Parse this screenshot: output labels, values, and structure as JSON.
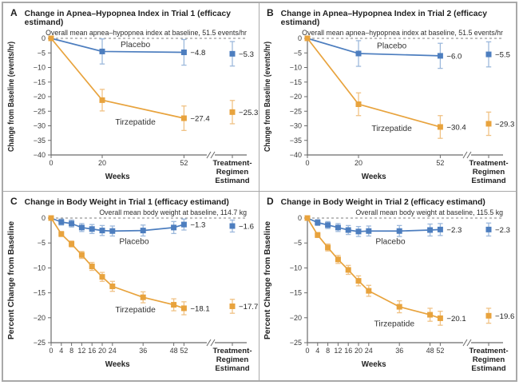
{
  "chart_data": [
    {
      "type": "line",
      "letter": "A",
      "title": "Change in Apnea–Hypopnea Index in Trial 1 (efficacy estimand)",
      "baseline_note": "Overall mean apnea–hypopnea index at baseline, 51.5 events/hr",
      "ylabel": "Change from Baseline (events/hr)",
      "xlabel": "Weeks",
      "estimand_axis_label": [
        "Treatment-",
        "Regimen",
        "Estimand"
      ],
      "ylim": [
        0,
        -40
      ],
      "yticks": [
        0,
        -5,
        -10,
        -15,
        -20,
        -25,
        -30,
        -35,
        -40
      ],
      "xticks": [
        0,
        20,
        52
      ],
      "series": [
        {
          "name": "Placebo",
          "color": "#4d7ebf",
          "err_color": "#9db9dc",
          "x": [
            0,
            20,
            52
          ],
          "y": [
            0,
            -4.5,
            -4.8
          ],
          "err": [
            0,
            4.3,
            4.4
          ],
          "end_label": "−4.8",
          "estimand": {
            "value": -5.3,
            "err": 4.2,
            "label": "−5.3"
          },
          "name_pos": {
            "week": 33,
            "value": -3.0
          }
        },
        {
          "name": "Tirzepatide",
          "color": "#e8a33d",
          "err_color": "#f0c285",
          "x": [
            0,
            20,
            52
          ],
          "y": [
            0,
            -21.2,
            -27.4
          ],
          "err": [
            0,
            3.7,
            4.2
          ],
          "end_label": "−27.4",
          "estimand": {
            "value": -25.3,
            "err": 4.0,
            "label": "−25.3"
          },
          "name_pos": {
            "week": 33,
            "value": -29.6
          }
        }
      ]
    },
    {
      "type": "line",
      "letter": "B",
      "title": "Change in Apnea–Hypopnea Index in Trial 2 (efficacy estimand)",
      "baseline_note": "Overall mean apnea–hypopnea index at baseline, 51.5 events/hr",
      "ylabel": "Change from Baseline (events/hr)",
      "xlabel": "Weeks",
      "estimand_axis_label": [
        "Treatment-",
        "Regimen",
        "Estimand"
      ],
      "ylim": [
        0,
        -40
      ],
      "yticks": [
        0,
        -5,
        -10,
        -15,
        -20,
        -25,
        -30,
        -35,
        -40
      ],
      "xticks": [
        0,
        20,
        52
      ],
      "series": [
        {
          "name": "Placebo",
          "color": "#4d7ebf",
          "err_color": "#9db9dc",
          "x": [
            0,
            20,
            52
          ],
          "y": [
            0,
            -5.2,
            -6.0
          ],
          "err": [
            0,
            4.4,
            4.3
          ],
          "end_label": "−6.0",
          "estimand": {
            "value": -5.5,
            "err": 4.3,
            "label": "−5.5"
          },
          "name_pos": {
            "week": 33,
            "value": -3.4
          }
        },
        {
          "name": "Tirzepatide",
          "color": "#e8a33d",
          "err_color": "#f0c285",
          "x": [
            0,
            20,
            52
          ],
          "y": [
            0,
            -22.6,
            -30.4
          ],
          "err": [
            0,
            3.9,
            3.9
          ],
          "end_label": "−30.4",
          "estimand": {
            "value": -29.3,
            "err": 4.0,
            "label": "−29.3"
          },
          "name_pos": {
            "week": 33,
            "value": -31.8
          }
        }
      ]
    },
    {
      "type": "line",
      "letter": "C",
      "title": "Change in Body Weight in Trial 1 (efficacy estimand)",
      "baseline_note": "Overall mean body weight at baseline, 114.7 kg",
      "ylabel": "Percent Change from Baseline",
      "xlabel": "Weeks",
      "estimand_axis_label": [
        "Treatment-",
        "Regimen",
        "Estimand"
      ],
      "ylim": [
        0,
        -25
      ],
      "yticks": [
        0,
        -5,
        -10,
        -15,
        -20,
        -25
      ],
      "xticks": [
        0,
        4,
        8,
        12,
        16,
        20,
        24,
        36,
        48,
        52
      ],
      "series": [
        {
          "name": "Placebo",
          "color": "#4d7ebf",
          "err_color": "#9db9dc",
          "x": [
            0,
            4,
            8,
            12,
            16,
            20,
            24,
            36,
            48,
            52
          ],
          "y": [
            0,
            -0.8,
            -1.1,
            -1.9,
            -2.2,
            -2.5,
            -2.6,
            -2.5,
            -1.9,
            -1.3
          ],
          "err": [
            0,
            0.6,
            0.7,
            0.8,
            0.9,
            1.0,
            1.0,
            1.1,
            1.2,
            1.1
          ],
          "end_label": "−1.3",
          "estimand": {
            "value": -1.6,
            "err": 1.2,
            "label": "−1.6"
          },
          "name_pos": {
            "week": 32.5,
            "value": -5.2
          }
        },
        {
          "name": "Tirzepatide",
          "color": "#e8a33d",
          "err_color": "#f0c285",
          "x": [
            0,
            4,
            8,
            12,
            16,
            20,
            24,
            36,
            48,
            52
          ],
          "y": [
            0,
            -3.2,
            -5.2,
            -7.4,
            -9.7,
            -11.8,
            -13.7,
            -15.9,
            -17.4,
            -18.1
          ],
          "err": [
            0,
            0.5,
            0.6,
            0.7,
            0.8,
            0.9,
            1.0,
            1.1,
            1.2,
            1.3
          ],
          "end_label": "−18.1",
          "estimand": {
            "value": -17.7,
            "err": 1.4,
            "label": "−17.7"
          },
          "name_pos": {
            "week": 33,
            "value": -18.9
          }
        }
      ]
    },
    {
      "type": "line",
      "letter": "D",
      "title": "Change in Body Weight in Trial 2 (efficacy estimand)",
      "baseline_note": "Overall mean body weight at baseline, 115.5 kg",
      "ylabel": "Percent Change from Baseline",
      "xlabel": "Weeks",
      "estimand_axis_label": [
        "Treatment-",
        "Regimen",
        "Estimand"
      ],
      "ylim": [
        0,
        -25
      ],
      "yticks": [
        0,
        -5,
        -10,
        -15,
        -20,
        -25
      ],
      "xticks": [
        0,
        4,
        8,
        12,
        16,
        20,
        24,
        36,
        48,
        52
      ],
      "series": [
        {
          "name": "Placebo",
          "color": "#4d7ebf",
          "err_color": "#9db9dc",
          "x": [
            0,
            4,
            8,
            12,
            16,
            20,
            24,
            36,
            48,
            52
          ],
          "y": [
            0,
            -0.9,
            -1.4,
            -1.9,
            -2.4,
            -2.7,
            -2.6,
            -2.6,
            -2.4,
            -2.3
          ],
          "err": [
            0,
            0.6,
            0.7,
            0.8,
            0.9,
            1.0,
            1.0,
            1.1,
            1.2,
            1.2
          ],
          "end_label": "−2.3",
          "estimand": {
            "value": -2.3,
            "err": 1.3,
            "label": "−2.3"
          },
          "name_pos": {
            "week": 32.5,
            "value": -5.2
          }
        },
        {
          "name": "Tirzepatide",
          "color": "#e8a33d",
          "err_color": "#f0c285",
          "x": [
            0,
            4,
            8,
            12,
            16,
            20,
            24,
            36,
            48,
            52
          ],
          "y": [
            0,
            -3.4,
            -5.9,
            -8.3,
            -10.4,
            -12.6,
            -14.6,
            -17.8,
            -19.4,
            -20.1
          ],
          "err": [
            0,
            0.5,
            0.7,
            0.8,
            0.9,
            1.0,
            1.1,
            1.2,
            1.3,
            1.4
          ],
          "end_label": "−20.1",
          "estimand": {
            "value": -19.6,
            "err": 1.5,
            "label": "−19.6"
          },
          "name_pos": {
            "week": 34,
            "value": -21.7
          }
        }
      ]
    }
  ]
}
